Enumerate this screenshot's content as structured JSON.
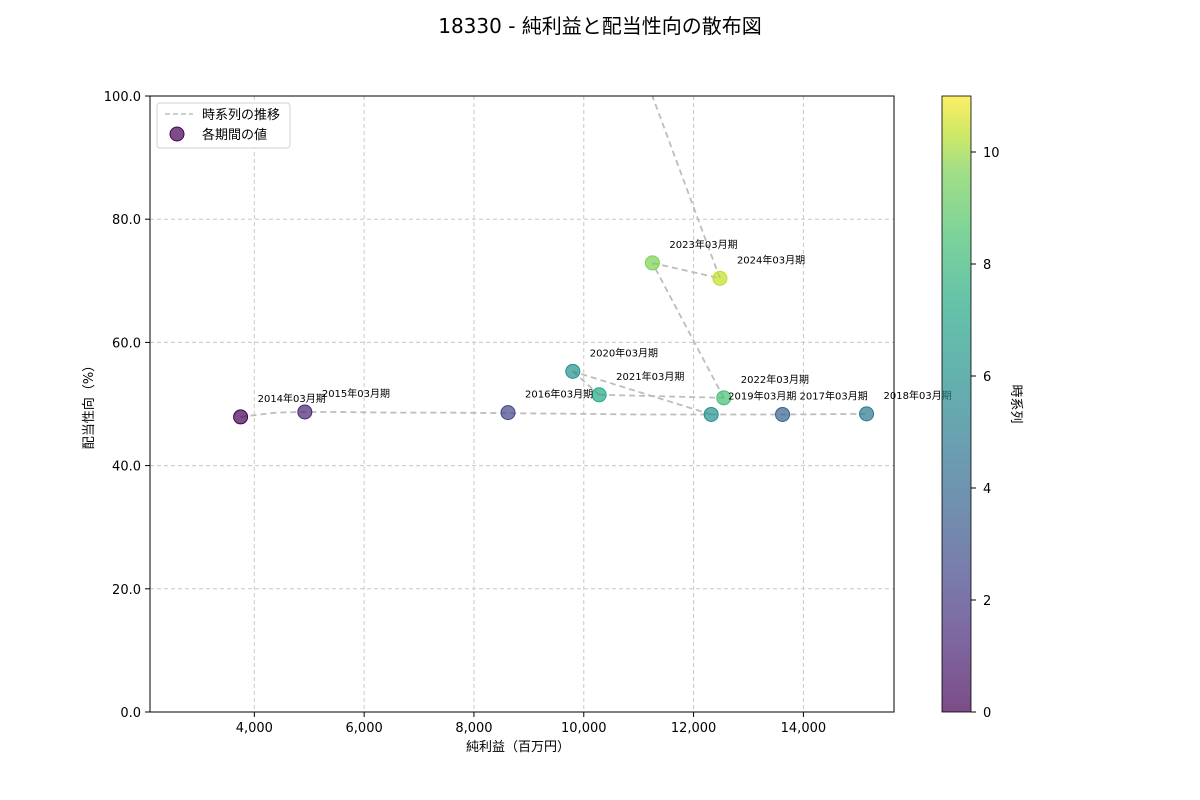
{
  "chart_data": {
    "type": "scatter",
    "title": "18330 - 純利益と配当性向の散布図",
    "xlabel": "純利益（百万円）",
    "ylabel": "配当性向（%）",
    "xlim": [
      2100,
      15650
    ],
    "ylim": [
      0,
      100
    ],
    "x_ticks": [
      4000,
      6000,
      8000,
      10000,
      12000,
      14000
    ],
    "x_tick_labels": [
      "4,000",
      "6,000",
      "8,000",
      "10,000",
      "12,000",
      "14,000"
    ],
    "y_ticks": [
      0,
      20,
      40,
      60,
      80,
      100
    ],
    "y_tick_labels": [
      "0.0",
      "20.0",
      "40.0",
      "60.0",
      "80.0",
      "100.0"
    ],
    "grid": true,
    "legend_position": "upper-left",
    "legend": {
      "line_label": "時系列の推移",
      "points_label": "各期間の値"
    },
    "colorbar": {
      "label": "時系列",
      "range": [
        0,
        11
      ],
      "ticks": [
        0,
        2,
        4,
        6,
        8,
        10
      ],
      "tick_labels": [
        "0",
        "2",
        "4",
        "6",
        "8",
        "10"
      ],
      "colormap": "viridis"
    },
    "trend_line": {
      "style": "dashed",
      "color": "#bdbdbd",
      "note_points": [
        [
          3750,
          47.9
        ],
        [
          4400,
          48.6
        ],
        [
          4900,
          48.7
        ],
        [
          5500,
          48.7
        ],
        [
          6500,
          48.6
        ],
        [
          7500,
          48.6
        ],
        [
          8620,
          48.5
        ],
        [
          10000,
          48.4
        ],
        [
          11000,
          48.3
        ],
        [
          12300,
          48.3
        ],
        [
          13600,
          48.3
        ],
        [
          15130,
          48.4
        ]
      ]
    },
    "points": [
      {
        "label": "2014年03月期",
        "x": 3750,
        "y": 47.9,
        "t": 0
      },
      {
        "label": "2015年03月期",
        "x": 4920,
        "y": 48.7,
        "t": 1
      },
      {
        "label": "2016年03月期",
        "x": 8620,
        "y": 48.6,
        "t": 2
      },
      {
        "label": "2017年03月期",
        "x": 13620,
        "y": 48.3,
        "t": 3
      },
      {
        "label": "2018年03月期",
        "x": 15150,
        "y": 48.4,
        "t": 4
      },
      {
        "label": "2019年03月期",
        "x": 12320,
        "y": 48.3,
        "t": 5
      },
      {
        "label": "2020年03月期",
        "x": 9800,
        "y": 55.3,
        "t": 6
      },
      {
        "label": "2021年03月期",
        "x": 10280,
        "y": 51.5,
        "t": 7
      },
      {
        "label": "2022年03月期",
        "x": 12550,
        "y": 51.0,
        "t": 8
      },
      {
        "label": "2023年03月期",
        "x": 11250,
        "y": 72.9,
        "t": 9
      },
      {
        "label": "2024年03月期",
        "x": 12480,
        "y": 70.4,
        "t": 10
      }
    ],
    "extra_segment": {
      "from": [
        12480,
        70.4
      ],
      "to": [
        11250,
        100
      ]
    }
  }
}
